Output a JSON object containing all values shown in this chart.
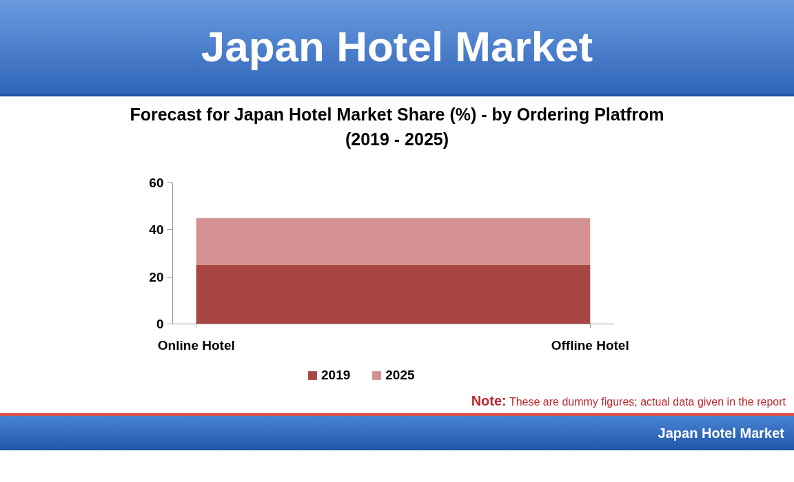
{
  "chart_data": {
    "type": "area",
    "title": "Japan Hotel Market",
    "subtitle": "Forecast for Japan Hotel Market Share (%) - by Ordering Platfrom\n(2019 - 2025)",
    "categories": [
      "Online Hotel",
      "Offline Hotel"
    ],
    "series": [
      {
        "name": "2019",
        "color": "#a84644",
        "values": [
          25,
          25
        ]
      },
      {
        "name": "2025",
        "color": "#d39191",
        "values": [
          45,
          45
        ]
      }
    ],
    "ylim": [
      0,
      60
    ],
    "yticks": [
      0,
      20,
      40,
      60
    ],
    "grid": false,
    "legend": "bottom",
    "annotations": [
      "Note: These are dummy figures; actual data given in the report",
      "Japan Hotel Market"
    ]
  }
}
